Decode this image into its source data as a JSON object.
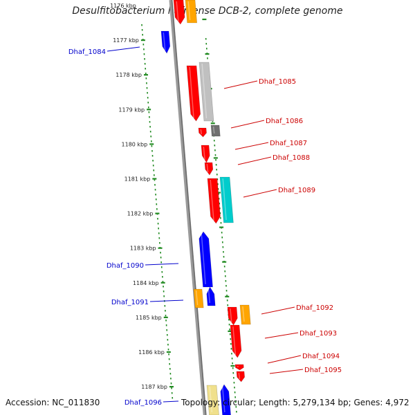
{
  "title": "Desulfitobacterium hafniense DCB-2, complete genome",
  "footer": {
    "accession": "Accession: NC_011830",
    "topology": "Topology: circular; Length: 5,279,134 bp; Genes: 4,972"
  },
  "colors": {
    "backbone": "#808080",
    "tick": "#228b22",
    "reverse_label": "#0000cc",
    "forward_label": "#cc0000"
  },
  "kbp_labels": [
    "1176 kbp",
    "1177 kbp",
    "1178 kbp",
    "1179 kbp",
    "1180 kbp",
    "1181 kbp",
    "1182 kbp",
    "1183 kbp",
    "1184 kbp",
    "1185 kbp",
    "1186 kbp",
    "1187 kbp"
  ],
  "genes_left": [
    "Dhaf_1084",
    "Dhaf_1090",
    "Dhaf_1091",
    "Dhaf_1096"
  ],
  "genes_right": [
    "Dhaf_1085",
    "Dhaf_1086",
    "Dhaf_1087",
    "Dhaf_1088",
    "Dhaf_1089",
    "Dhaf_1092",
    "Dhaf_1093",
    "Dhaf_1094",
    "Dhaf_1095"
  ]
}
